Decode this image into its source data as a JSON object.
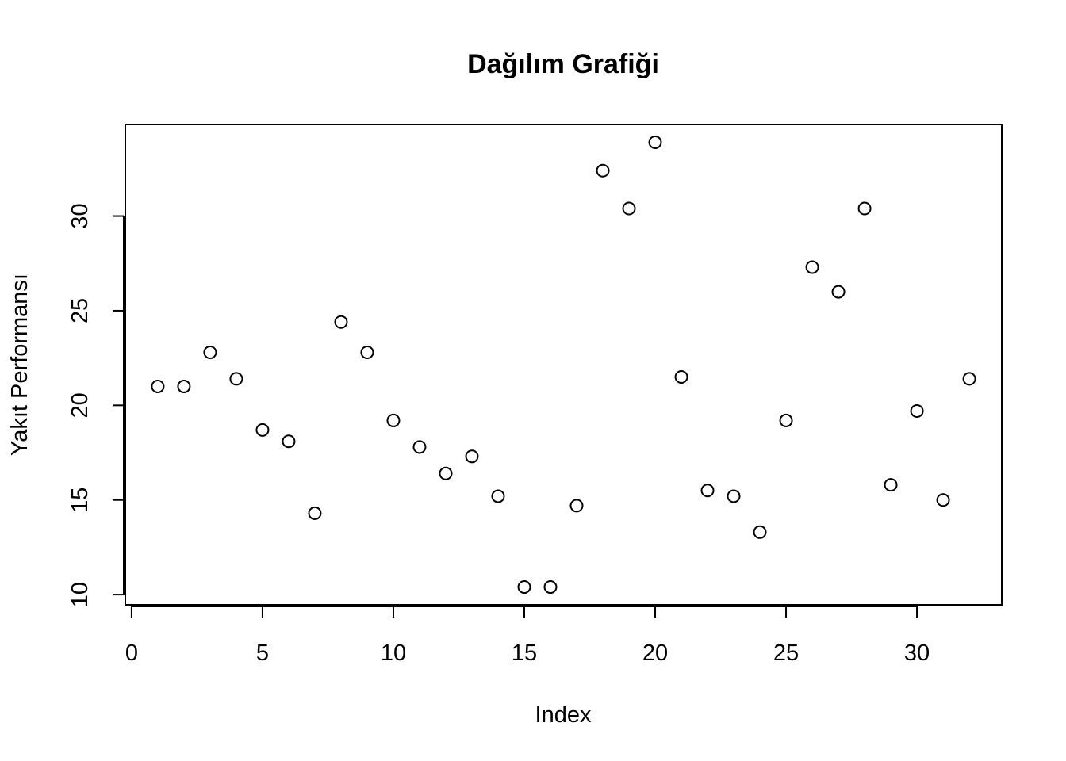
{
  "chart_data": {
    "type": "scatter",
    "title": "Dağılım Grafiği",
    "xlabel": "Index",
    "ylabel": "Yakıt Performansı",
    "x": [
      1,
      2,
      3,
      4,
      5,
      6,
      7,
      8,
      9,
      10,
      11,
      12,
      13,
      14,
      15,
      16,
      17,
      18,
      19,
      20,
      21,
      22,
      23,
      24,
      25,
      26,
      27,
      28,
      29,
      30,
      31,
      32
    ],
    "y": [
      21.0,
      21.0,
      22.8,
      21.4,
      18.7,
      18.1,
      14.3,
      24.4,
      22.8,
      19.2,
      17.8,
      16.4,
      17.3,
      15.2,
      10.4,
      10.4,
      14.7,
      32.4,
      30.4,
      33.9,
      21.5,
      15.5,
      15.2,
      13.3,
      19.2,
      27.3,
      26.0,
      30.4,
      15.8,
      19.7,
      15.0,
      21.4
    ],
    "xlim": [
      -0.24,
      33.24
    ],
    "ylim": [
      9.46,
      34.84
    ],
    "xticks": [
      0,
      5,
      10,
      15,
      20,
      25,
      30
    ],
    "yticks": [
      10,
      15,
      20,
      25,
      30
    ],
    "grid": false,
    "point_style": "open-circle"
  }
}
